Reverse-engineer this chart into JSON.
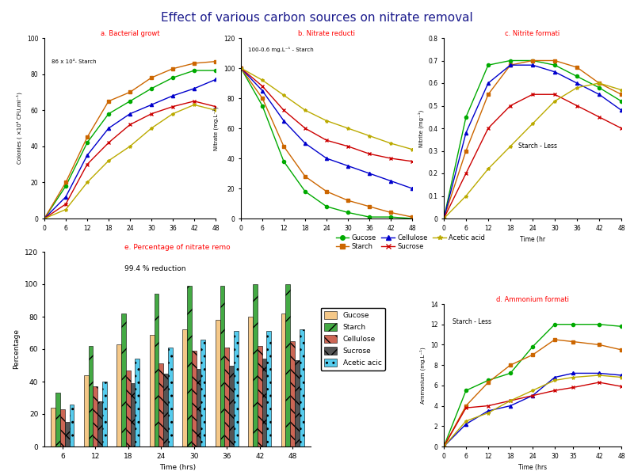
{
  "title": "Effect of various carbon sources on nitrate removal",
  "title_color": "#1a1a8c",
  "title_fontsize": 11,
  "time_bacterial": [
    0,
    6,
    12,
    18,
    24,
    30,
    36,
    42,
    48
  ],
  "bacterial": {
    "Glucose": [
      0,
      18,
      42,
      58,
      65,
      72,
      78,
      82,
      82
    ],
    "Starch": [
      0,
      20,
      45,
      65,
      70,
      78,
      83,
      86,
      87
    ],
    "Cellulose": [
      0,
      12,
      35,
      50,
      58,
      63,
      68,
      72,
      77
    ],
    "Sucrose": [
      0,
      8,
      30,
      42,
      52,
      58,
      62,
      65,
      62
    ],
    "Acetic_acid": [
      0,
      5,
      20,
      32,
      40,
      50,
      58,
      63,
      60
    ]
  },
  "time_nitrate": [
    0,
    6,
    12,
    18,
    24,
    30,
    36,
    42,
    48
  ],
  "nitrate": {
    "Glucose": [
      100,
      75,
      38,
      18,
      8,
      4,
      1,
      1,
      0
    ],
    "Starch": [
      100,
      80,
      48,
      28,
      18,
      12,
      8,
      4,
      1
    ],
    "Cellulose": [
      100,
      85,
      65,
      50,
      40,
      35,
      30,
      25,
      20
    ],
    "Sucrose": [
      100,
      88,
      72,
      60,
      52,
      48,
      43,
      40,
      38
    ],
    "Acetic_acid": [
      100,
      92,
      82,
      72,
      65,
      60,
      55,
      50,
      46
    ]
  },
  "time_nitrite": [
    0,
    6,
    12,
    18,
    24,
    30,
    36,
    42,
    48
  ],
  "nitrite": {
    "Glucose": [
      0,
      0.45,
      0.68,
      0.7,
      0.7,
      0.68,
      0.63,
      0.58,
      0.52
    ],
    "Starch": [
      0,
      0.3,
      0.55,
      0.68,
      0.7,
      0.7,
      0.67,
      0.6,
      0.55
    ],
    "Cellulose": [
      0,
      0.38,
      0.6,
      0.68,
      0.68,
      0.65,
      0.6,
      0.55,
      0.48
    ],
    "Sucrose": [
      0,
      0.2,
      0.4,
      0.5,
      0.55,
      0.55,
      0.5,
      0.45,
      0.4
    ],
    "Acetic_acid": [
      0,
      0.1,
      0.22,
      0.32,
      0.42,
      0.52,
      0.58,
      0.6,
      0.57
    ]
  },
  "time_ammonium": [
    0,
    6,
    12,
    18,
    24,
    30,
    35,
    42,
    48
  ],
  "ammonium": {
    "Glucose": [
      0,
      5.5,
      6.5,
      7.2,
      9.8,
      12.0,
      12.0,
      12.0,
      11.8
    ],
    "Starch": [
      0,
      4.0,
      6.3,
      8.0,
      9.0,
      10.5,
      10.3,
      10.0,
      9.5
    ],
    "Cellulose": [
      0,
      2.2,
      3.5,
      4.0,
      5.0,
      6.8,
      7.2,
      7.2,
      7.0
    ],
    "Sucrose": [
      0,
      3.8,
      4.0,
      4.5,
      5.0,
      5.5,
      5.8,
      6.3,
      5.9
    ],
    "Acetic_acid": [
      0,
      2.5,
      3.3,
      4.5,
      5.5,
      6.5,
      6.8,
      7.0,
      6.8
    ]
  },
  "time_bar": [
    6,
    12,
    18,
    24,
    30,
    36,
    42,
    48
  ],
  "bar_data": {
    "Glucose": [
      24,
      44,
      63,
      69,
      72,
      78,
      80,
      82
    ],
    "Starch": [
      33,
      62,
      82,
      94,
      99,
      99,
      100,
      100
    ],
    "Cellulose": [
      23,
      37,
      47,
      51,
      59,
      61,
      62,
      65
    ],
    "Sucrose": [
      15,
      28,
      39,
      45,
      48,
      50,
      54,
      53
    ],
    "Acetic_acid": [
      26,
      40,
      54,
      61,
      66,
      71,
      71,
      72
    ]
  },
  "line_colors": {
    "Glucose": "#00aa00",
    "Starch": "#cc6600",
    "Cellulose": "#0000cc",
    "Sucrose": "#cc0000",
    "Acetic_acid": "#bbaa00"
  },
  "line_markers": {
    "Glucose": "o",
    "Starch": "s",
    "Cellulose": "^",
    "Sucrose": "x",
    "Acetic_acid": "*"
  },
  "bar_facecolors": {
    "Glucose": "#f5c888",
    "Starch": "#44aa44",
    "Cellulose": "#cc6655",
    "Sucrose": "#555555",
    "Acetic_acid": "#55ccee"
  },
  "bar_hatches": [
    "",
    "/",
    "\\\\",
    "x",
    ".."
  ],
  "subplot_labels": {
    "a": "a. Bacterial growt",
    "b": "b. Nitrate reducti",
    "c": "c. Nitrite formati",
    "d": "d. Ammonium formati",
    "e": "e. Percentage of nitrate remo"
  },
  "annotations": {
    "a_note": "86 x 10⁴- Starch",
    "b_note": "100-0.6 mg.L⁻¹ - Starch",
    "c_note": "Starch - Less",
    "d_note": "Starch - Less",
    "e_note": "99.4 % reduction"
  },
  "legend_line_labels": [
    "Gucose",
    "Starch",
    "Cellulose",
    "Sucrose",
    "Acetic acid"
  ],
  "legend_bar_labels": [
    "Gucose",
    "Starch",
    "Cellulose",
    "Sucrose",
    "Acetic acic"
  ]
}
